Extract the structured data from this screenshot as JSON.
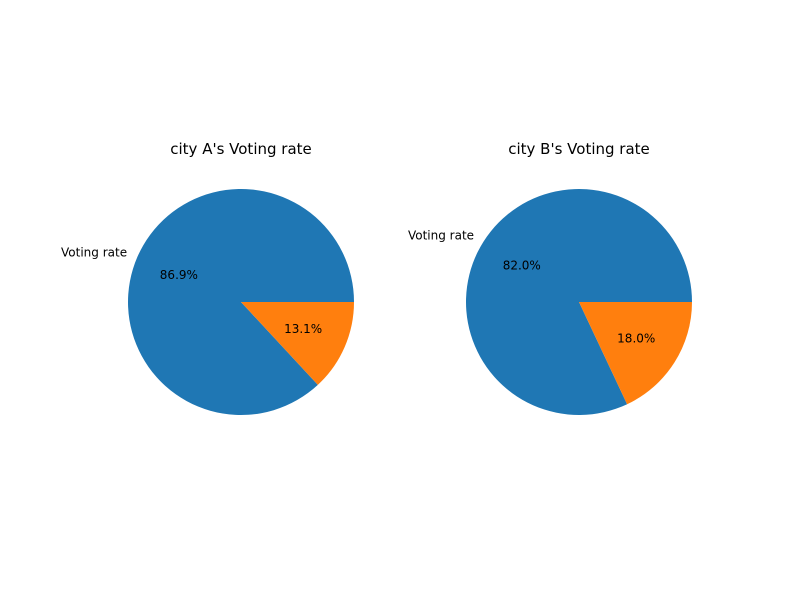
{
  "chart_data": [
    {
      "type": "pie",
      "title": "city A's Voting rate",
      "labels": [
        "Voting rate",
        ""
      ],
      "values": [
        86.9,
        13.1
      ],
      "percent_labels": [
        "86.9%",
        "13.1%"
      ],
      "colors": [
        "#1f77b4",
        "#ff7f0e"
      ],
      "start_angle": 0,
      "direction": "counterclockwise"
    },
    {
      "type": "pie",
      "title": "city B's Voting rate",
      "labels": [
        "Voting rate",
        ""
      ],
      "values": [
        82.0,
        18.0
      ],
      "percent_labels": [
        "82.0%",
        "18.0%"
      ],
      "colors": [
        "#1f77b4",
        "#ff7f0e"
      ],
      "start_angle": 0,
      "direction": "counterclockwise"
    }
  ]
}
